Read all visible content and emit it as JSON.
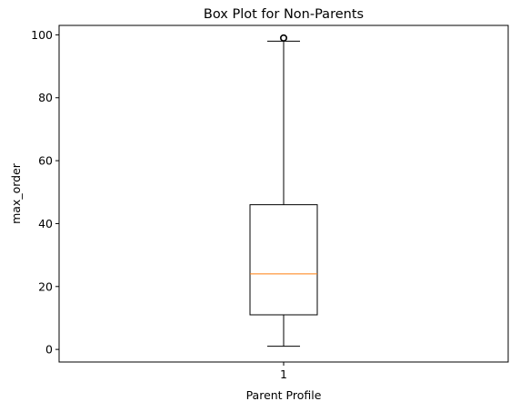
{
  "chart_data": {
    "type": "box",
    "title": "Box Plot for Non-Parents",
    "xlabel": "Parent Profile",
    "ylabel": "max_order",
    "categories": [
      "1"
    ],
    "ylim": [
      -4,
      103
    ],
    "yticks": [
      0,
      20,
      40,
      60,
      80,
      100
    ],
    "series": [
      {
        "whisker_low": 1,
        "q1": 11,
        "median": 24,
        "q3": 46,
        "whisker_high": 98,
        "outliers": [
          99
        ]
      }
    ],
    "colors": {
      "box": "#000000",
      "median": "#ff7f0e",
      "outlier": "#000000"
    },
    "grid": false
  }
}
